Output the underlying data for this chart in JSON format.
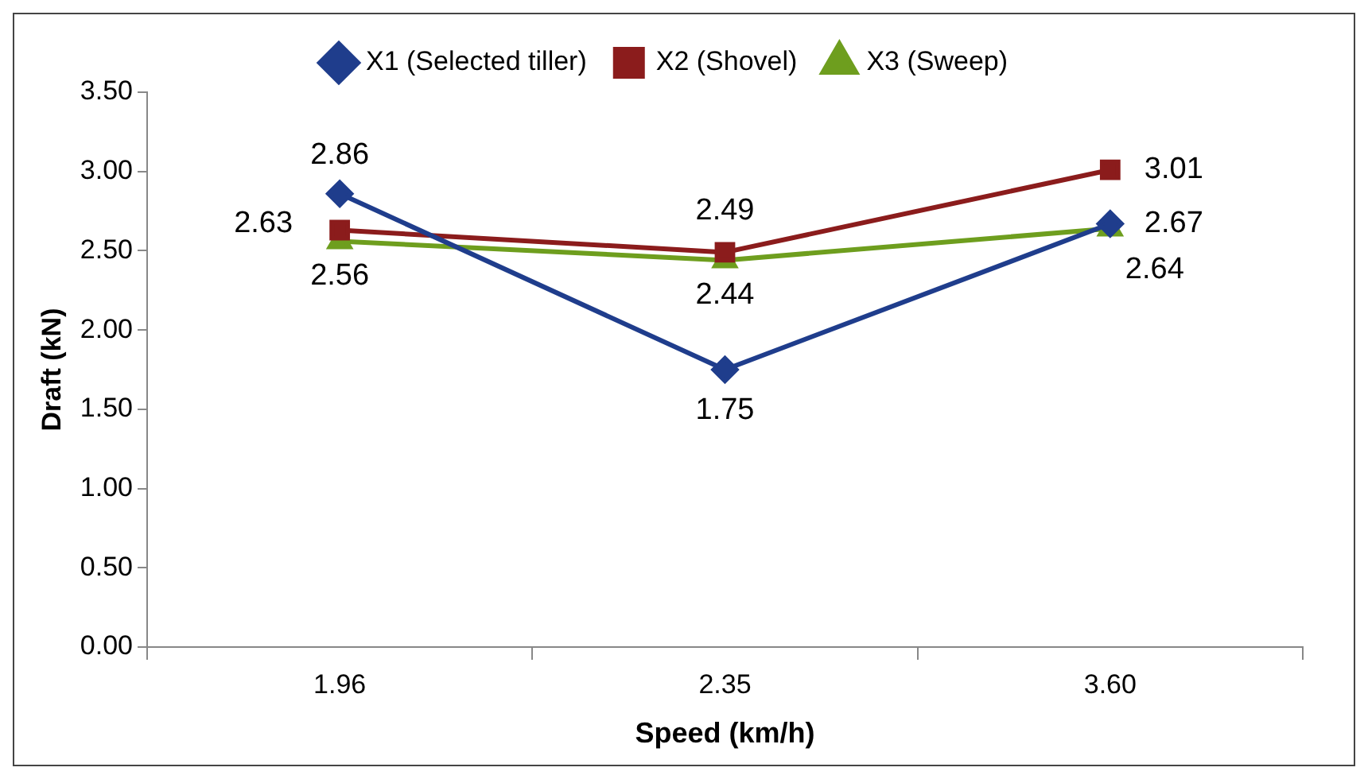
{
  "chart_data": {
    "type": "line",
    "xlabel": "Speed (km/h)",
    "ylabel": "Draft (kN)",
    "categories": [
      "1.96",
      "2.35",
      "3.60"
    ],
    "series": [
      {
        "name": "X1 (Selected tiller)",
        "color": "#1f3d8c",
        "marker": "diamond",
        "values": [
          2.86,
          1.75,
          2.67
        ]
      },
      {
        "name": "X2 (Shovel)",
        "color": "#8b1c1c",
        "marker": "square",
        "values": [
          2.63,
          2.49,
          3.01
        ]
      },
      {
        "name": "X3 (Sweep)",
        "color": "#6e9e1e",
        "marker": "triangle",
        "values": [
          2.56,
          2.44,
          2.64
        ]
      }
    ],
    "ylim": [
      0,
      3.5
    ],
    "yticks": [
      {
        "value": 0,
        "label": "0.00"
      },
      {
        "value": 0.5,
        "label": "0.50"
      },
      {
        "value": 1,
        "label": "1.00"
      },
      {
        "value": 1.5,
        "label": "1.50"
      },
      {
        "value": 2,
        "label": "2.00"
      },
      {
        "value": 2.5,
        "label": "2.50"
      },
      {
        "value": 3,
        "label": "3.00"
      },
      {
        "value": 3.5,
        "label": "3.50"
      }
    ],
    "grid": false,
    "legend": "top",
    "data_labels": true,
    "line_style": "solid"
  }
}
